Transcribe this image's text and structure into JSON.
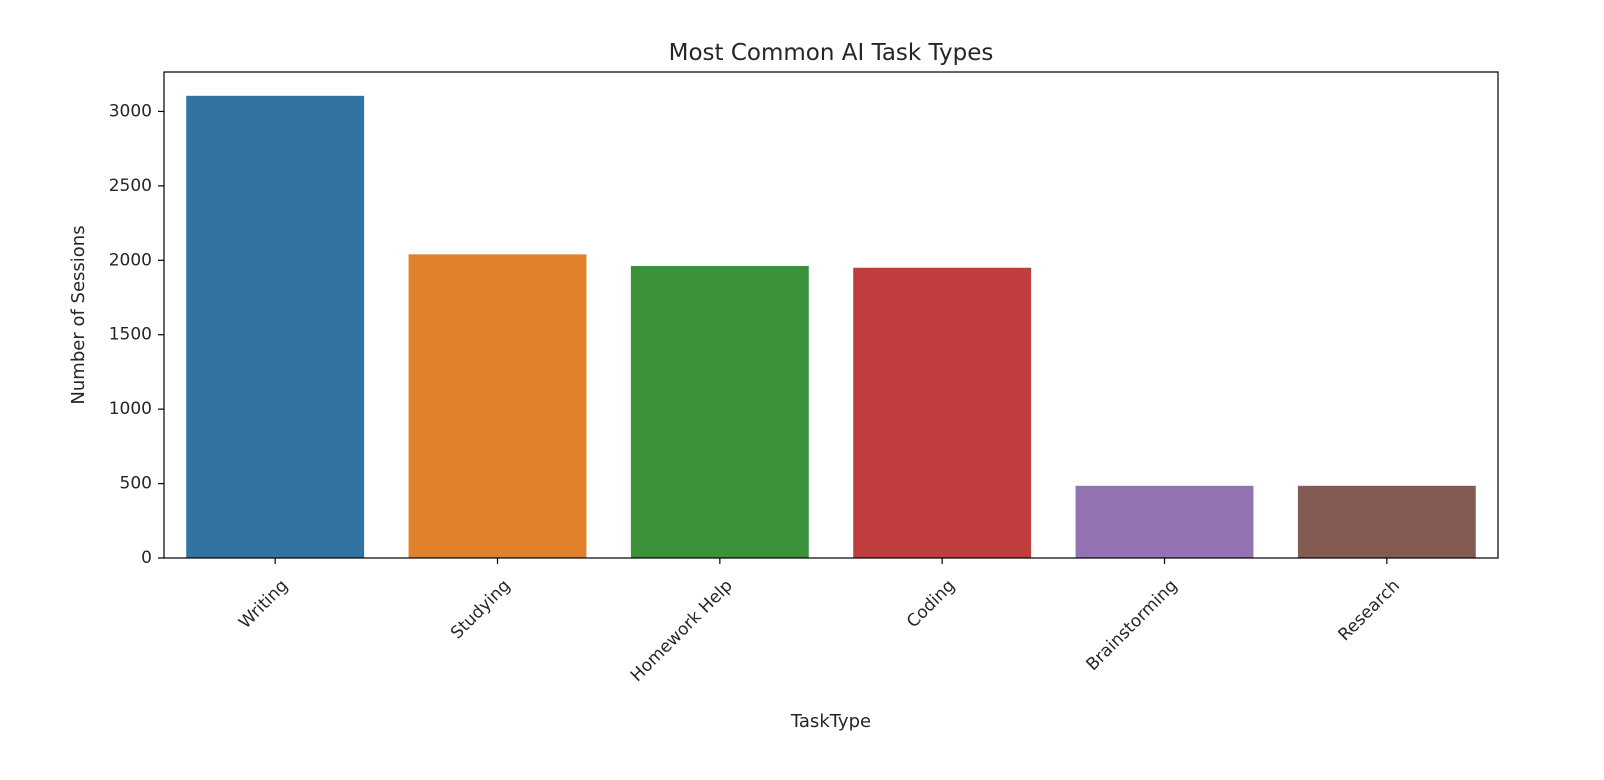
{
  "chart_data": {
    "type": "bar",
    "title": "Most Common AI Task Types",
    "xlabel": "TaskType",
    "ylabel": "Number of Sessions",
    "categories": [
      "Writing",
      "Studying",
      "Homework Help",
      "Coding",
      "Brainstorming",
      "Research"
    ],
    "values": [
      3105,
      2040,
      1962,
      1950,
      485,
      485
    ],
    "colors": [
      "#3274a1",
      "#e1812c",
      "#3a923a",
      "#c03d3e",
      "#9372b2",
      "#845b53"
    ],
    "ylim": [
      0,
      3265
    ],
    "yticks": [
      0,
      500,
      1000,
      1500,
      2000,
      2500,
      3000
    ],
    "xtick_rotation": 45,
    "grid": false,
    "legend": "none"
  }
}
